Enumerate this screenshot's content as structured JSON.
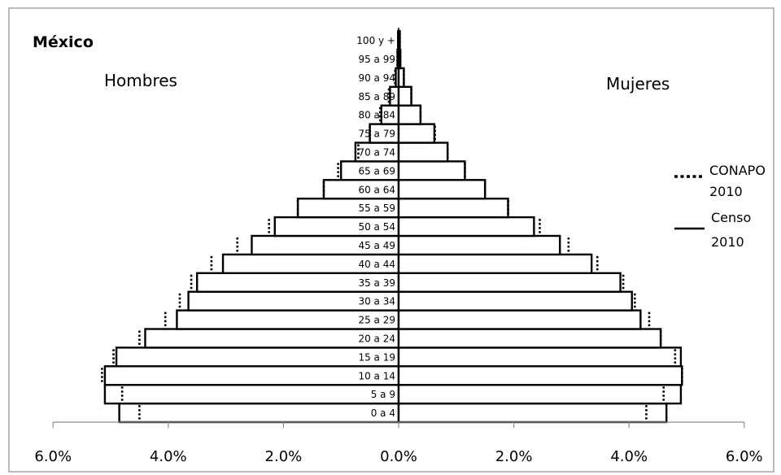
{
  "chart_data": {
    "type": "bar",
    "title": "México",
    "left_label": "Hombres",
    "right_label": "Mujeres",
    "categories": [
      "0 a 4",
      "5 a 9",
      "10 a 14",
      "15 a 19",
      "20 a 24",
      "25 a 29",
      "30 a 34",
      "35 a 39",
      "40 a 44",
      "45 a 49",
      "50 a 54",
      "55 a 59",
      "60 a 64",
      "65 a 69",
      "70 a 74",
      "75 a 79",
      "80 a 84",
      "85 a 89",
      "90 a 94",
      "95 a 99",
      "100 y +"
    ],
    "xlim": [
      -6,
      6
    ],
    "x_ticks": [
      -6,
      -4,
      -2,
      0,
      2,
      4,
      6
    ],
    "x_tick_labels": [
      "6.0%",
      "4.0%",
      "2.0%",
      "0.0%",
      "2.0%",
      "4.0%",
      "6.0%"
    ],
    "series": [
      {
        "name": "Censo 2010",
        "style": "solid",
        "hombres": [
          4.85,
          5.1,
          5.1,
          4.9,
          4.4,
          3.85,
          3.65,
          3.5,
          3.05,
          2.55,
          2.15,
          1.75,
          1.3,
          1.0,
          0.75,
          0.5,
          0.3,
          0.15,
          0.05,
          0.02,
          0.01
        ],
        "mujeres": [
          4.65,
          4.9,
          4.92,
          4.9,
          4.55,
          4.2,
          4.05,
          3.85,
          3.35,
          2.8,
          2.35,
          1.9,
          1.5,
          1.15,
          0.85,
          0.62,
          0.38,
          0.22,
          0.09,
          0.03,
          0.02
        ]
      },
      {
        "name": "CONAPO 2010",
        "style": "dotted",
        "hombres": [
          4.5,
          4.8,
          5.15,
          4.95,
          4.5,
          4.05,
          3.8,
          3.6,
          3.25,
          2.8,
          2.25,
          1.75,
          1.3,
          1.05,
          0.7,
          0.5,
          0.32,
          0.17,
          0.06,
          0.02,
          0.01
        ],
        "mujeres": [
          4.3,
          4.6,
          4.92,
          4.8,
          4.55,
          4.35,
          4.1,
          3.9,
          3.45,
          2.95,
          2.45,
          1.9,
          1.5,
          1.15,
          0.85,
          0.63,
          0.38,
          0.22,
          0.09,
          0.03,
          0.02
        ]
      }
    ],
    "legend": [
      {
        "style": "dotted",
        "lines": [
          "CONAPO",
          "2010"
        ]
      },
      {
        "style": "solid",
        "lines": [
          "Censo",
          "2010"
        ]
      }
    ],
    "legend_position": "right",
    "grid": false,
    "colors": {
      "bars": "#000000",
      "bar_fill": "#ffffff",
      "frame": "#8c8c8c"
    }
  }
}
